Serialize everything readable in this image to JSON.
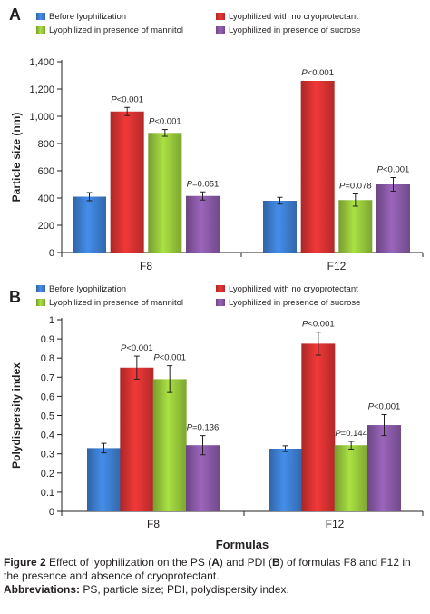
{
  "chart_data": [
    {
      "type": "bar",
      "panel_label": "A",
      "categories": [
        "F8",
        "F12"
      ],
      "ylabel": "Particle size (nm)",
      "xlabel": "",
      "ylim": [
        0,
        1400
      ],
      "yticks": [
        "0",
        "200",
        "400",
        "600",
        "800",
        "1,000",
        "1,200",
        "1,400"
      ],
      "ytick_values": [
        0,
        200,
        400,
        600,
        800,
        1000,
        1200,
        1400
      ],
      "grid": false,
      "legend_position": "top",
      "series": [
        {
          "name": "Before lyophilization",
          "color": "#3d7fd1",
          "values": [
            410,
            380
          ],
          "errors": [
            30,
            25
          ],
          "labels": [
            "",
            ""
          ]
        },
        {
          "name": "Lyophilized with no cryoprotectant",
          "color": "#d93232",
          "values": [
            1035,
            1260
          ],
          "errors": [
            30,
            0
          ],
          "labels": [
            "P<0.001",
            "P<0.001"
          ]
        },
        {
          "name": "Lyophilized in presence of mannitol",
          "color": "#98c93c",
          "values": [
            878,
            385
          ],
          "errors": [
            25,
            45
          ],
          "labels": [
            "P<0.001",
            "P=0.078"
          ]
        },
        {
          "name": "Lyophilized in presence of sucrose",
          "color": "#8a5aa8",
          "values": [
            415,
            500
          ],
          "errors": [
            30,
            50
          ],
          "labels": [
            "P=0.051",
            "P<0.001"
          ]
        }
      ]
    },
    {
      "type": "bar",
      "panel_label": "B",
      "categories": [
        "F8",
        "F12"
      ],
      "ylabel": "Polydispersity index",
      "xlabel": "Formulas",
      "ylim": [
        0,
        1
      ],
      "yticks": [
        "0",
        "0.1",
        "0.2",
        "0.3",
        "0.4",
        "0.5",
        "0.6",
        "0.7",
        "0.8",
        "0.9",
        "1"
      ],
      "ytick_values": [
        0,
        0.1,
        0.2,
        0.3,
        0.4,
        0.5,
        0.6,
        0.7,
        0.8,
        0.9,
        1
      ],
      "grid": false,
      "legend_position": "top",
      "series": [
        {
          "name": "Before lyophilization",
          "color": "#3d7fd1",
          "values": [
            0.33,
            0.327
          ],
          "errors": [
            0.025,
            0.015
          ],
          "labels": [
            "",
            ""
          ]
        },
        {
          "name": "Lyophilized with no cryoprotectant",
          "color": "#d93232",
          "values": [
            0.75,
            0.875
          ],
          "errors": [
            0.06,
            0.06
          ],
          "labels": [
            "P<0.001",
            "P<0.001"
          ]
        },
        {
          "name": "Lyophilized in presence of mannitol",
          "color": "#98c93c",
          "values": [
            0.69,
            0.345
          ],
          "errors": [
            0.07,
            0.02
          ],
          "labels": [
            "P<0.001",
            "P=0.144"
          ]
        },
        {
          "name": "Lyophilized in presence of sucrose",
          "color": "#8a5aa8",
          "values": [
            0.345,
            0.45
          ],
          "errors": [
            0.05,
            0.055
          ],
          "labels": [
            "P=0.136",
            "P<0.001"
          ]
        }
      ]
    }
  ],
  "caption": {
    "figure_label": "Figure 2",
    "text_1": " Effect of lyophilization on the PS (",
    "bold_a": "A",
    "text_2": ") and PDI (",
    "bold_b": "B",
    "text_3": ") of formulas F8 and F12 in the presence and absence of cryoprotectant.",
    "abbr_label": "Abbreviations:",
    "abbr_text": " PS, particle size; PDI, polydispersity index."
  }
}
